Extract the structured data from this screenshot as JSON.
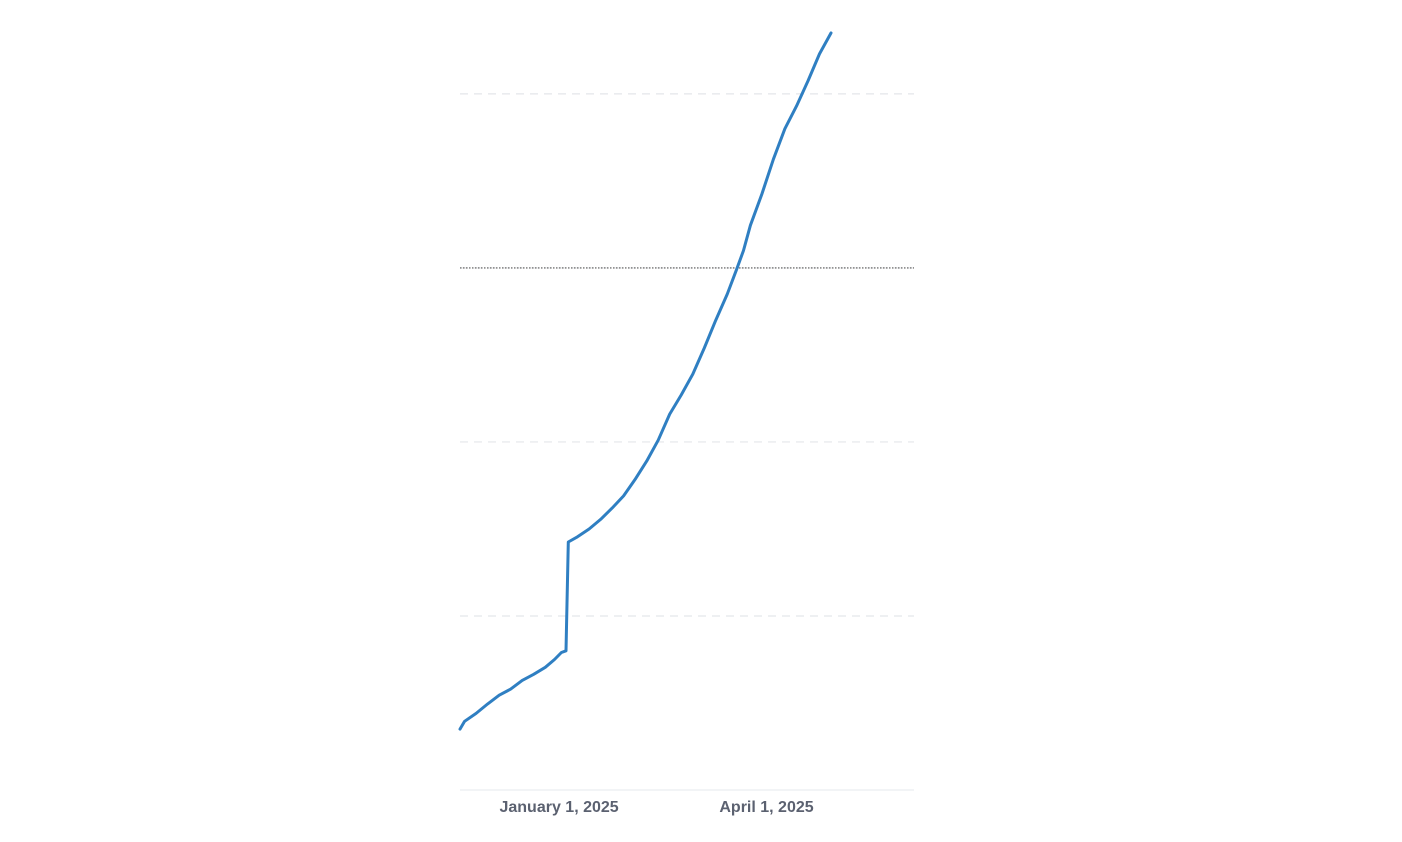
{
  "chart_data": {
    "type": "line",
    "title": "",
    "xlabel": "",
    "ylabel": "",
    "grid": true,
    "legend": "none",
    "x_tick_labels": [
      "January 1, 2025",
      "April 1, 2025"
    ],
    "x_ticks": [
      "2025-01-01",
      "2025-04-01"
    ],
    "y_ticks_unlabeled": [
      20,
      40,
      60,
      80
    ],
    "reference_line": {
      "y": 60,
      "style": "dotted"
    },
    "xlim": [
      "2024-11-19",
      "2025-06-04"
    ],
    "ylim": [
      0,
      87
    ],
    "colors": {
      "line": "#2f7fc2",
      "grid": "#e4e6ea",
      "reference": "#555555",
      "tick_text": "#5b6170"
    },
    "series": [
      {
        "points": [
          [
            "2024-11-19",
            7.0
          ],
          [
            "2024-11-21",
            7.9
          ],
          [
            "2024-11-26",
            8.8
          ],
          [
            "2024-12-01",
            9.9
          ],
          [
            "2024-12-06",
            10.9
          ],
          [
            "2024-12-11",
            11.6
          ],
          [
            "2024-12-16",
            12.6
          ],
          [
            "2024-12-21",
            13.3
          ],
          [
            "2024-12-26",
            14.1
          ],
          [
            "2024-12-30",
            15.0
          ],
          [
            "2025-01-02",
            15.8
          ],
          [
            "2025-01-04",
            16.0
          ],
          [
            "2025-01-05",
            28.5
          ],
          [
            "2025-01-09",
            29.1
          ],
          [
            "2025-01-14",
            30.0
          ],
          [
            "2025-01-19",
            31.1
          ],
          [
            "2025-01-24",
            32.4
          ],
          [
            "2025-01-29",
            33.8
          ],
          [
            "2025-02-03",
            35.7
          ],
          [
            "2025-02-08",
            37.8
          ],
          [
            "2025-02-13",
            40.2
          ],
          [
            "2025-02-18",
            43.2
          ],
          [
            "2025-02-23",
            45.4
          ],
          [
            "2025-02-28",
            47.8
          ],
          [
            "2025-03-05",
            50.8
          ],
          [
            "2025-03-10",
            54.0
          ],
          [
            "2025-03-15",
            57.0
          ],
          [
            "2025-03-19",
            59.8
          ],
          [
            "2025-03-22",
            62.0
          ],
          [
            "2025-03-25",
            64.9
          ],
          [
            "2025-03-30",
            68.5
          ],
          [
            "2025-04-04",
            72.5
          ],
          [
            "2025-04-09",
            76.0
          ],
          [
            "2025-04-14",
            78.6
          ],
          [
            "2025-04-19",
            81.5
          ],
          [
            "2025-04-24",
            84.6
          ],
          [
            "2025-04-29",
            87.0
          ]
        ]
      }
    ]
  }
}
